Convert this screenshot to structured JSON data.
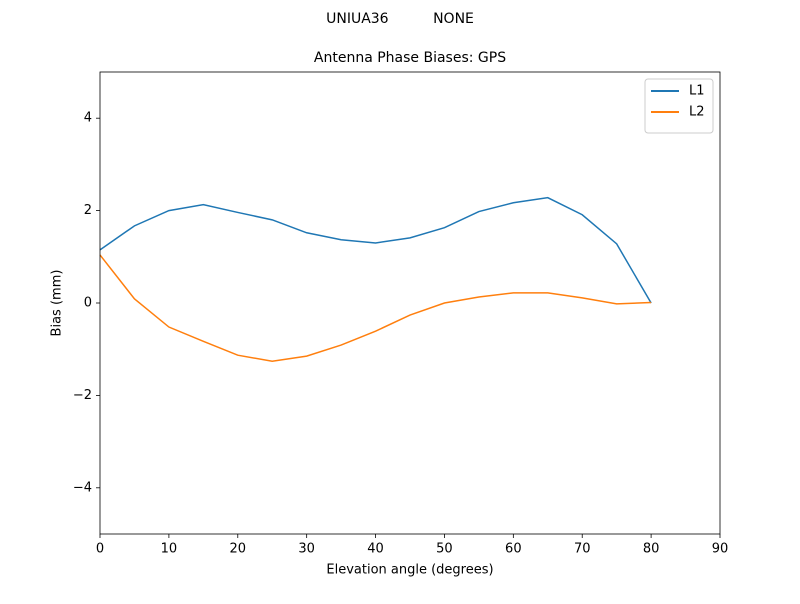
{
  "chart_data": {
    "type": "line",
    "suptitle": "UNIUA36          NONE",
    "title": "Antenna Phase Biases: GPS",
    "xlabel": "Elevation angle (degrees)",
    "ylabel": "Bias (mm)",
    "x": [
      0,
      5,
      10,
      15,
      20,
      25,
      30,
      35,
      40,
      45,
      50,
      55,
      60,
      65,
      70,
      75,
      80
    ],
    "series": [
      {
        "name": "L1",
        "color": "#1f77b4",
        "values": [
          1.15,
          1.67,
          2.0,
          2.13,
          1.96,
          1.8,
          1.52,
          1.37,
          1.3,
          1.41,
          1.63,
          1.98,
          2.17,
          2.28,
          1.91,
          1.28,
          0
        ]
      },
      {
        "name": "L2",
        "color": "#ff7f0e",
        "values": [
          1.04,
          0.09,
          -0.52,
          -0.83,
          -1.13,
          -1.26,
          -1.15,
          -0.91,
          -0.61,
          -0.26,
          0.0,
          0.13,
          0.22,
          0.22,
          0.11,
          -0.02,
          0.01
        ]
      }
    ],
    "xlim": [
      0,
      90
    ],
    "xticks": [
      0,
      10,
      20,
      30,
      40,
      50,
      60,
      70,
      80,
      90
    ],
    "ylim": [
      -5,
      5
    ],
    "yticks": [
      {
        "value": -4,
        "label": "−4"
      },
      {
        "value": -2,
        "label": "−2"
      },
      0,
      2,
      4
    ],
    "grid": false,
    "legend": "upper-right"
  }
}
